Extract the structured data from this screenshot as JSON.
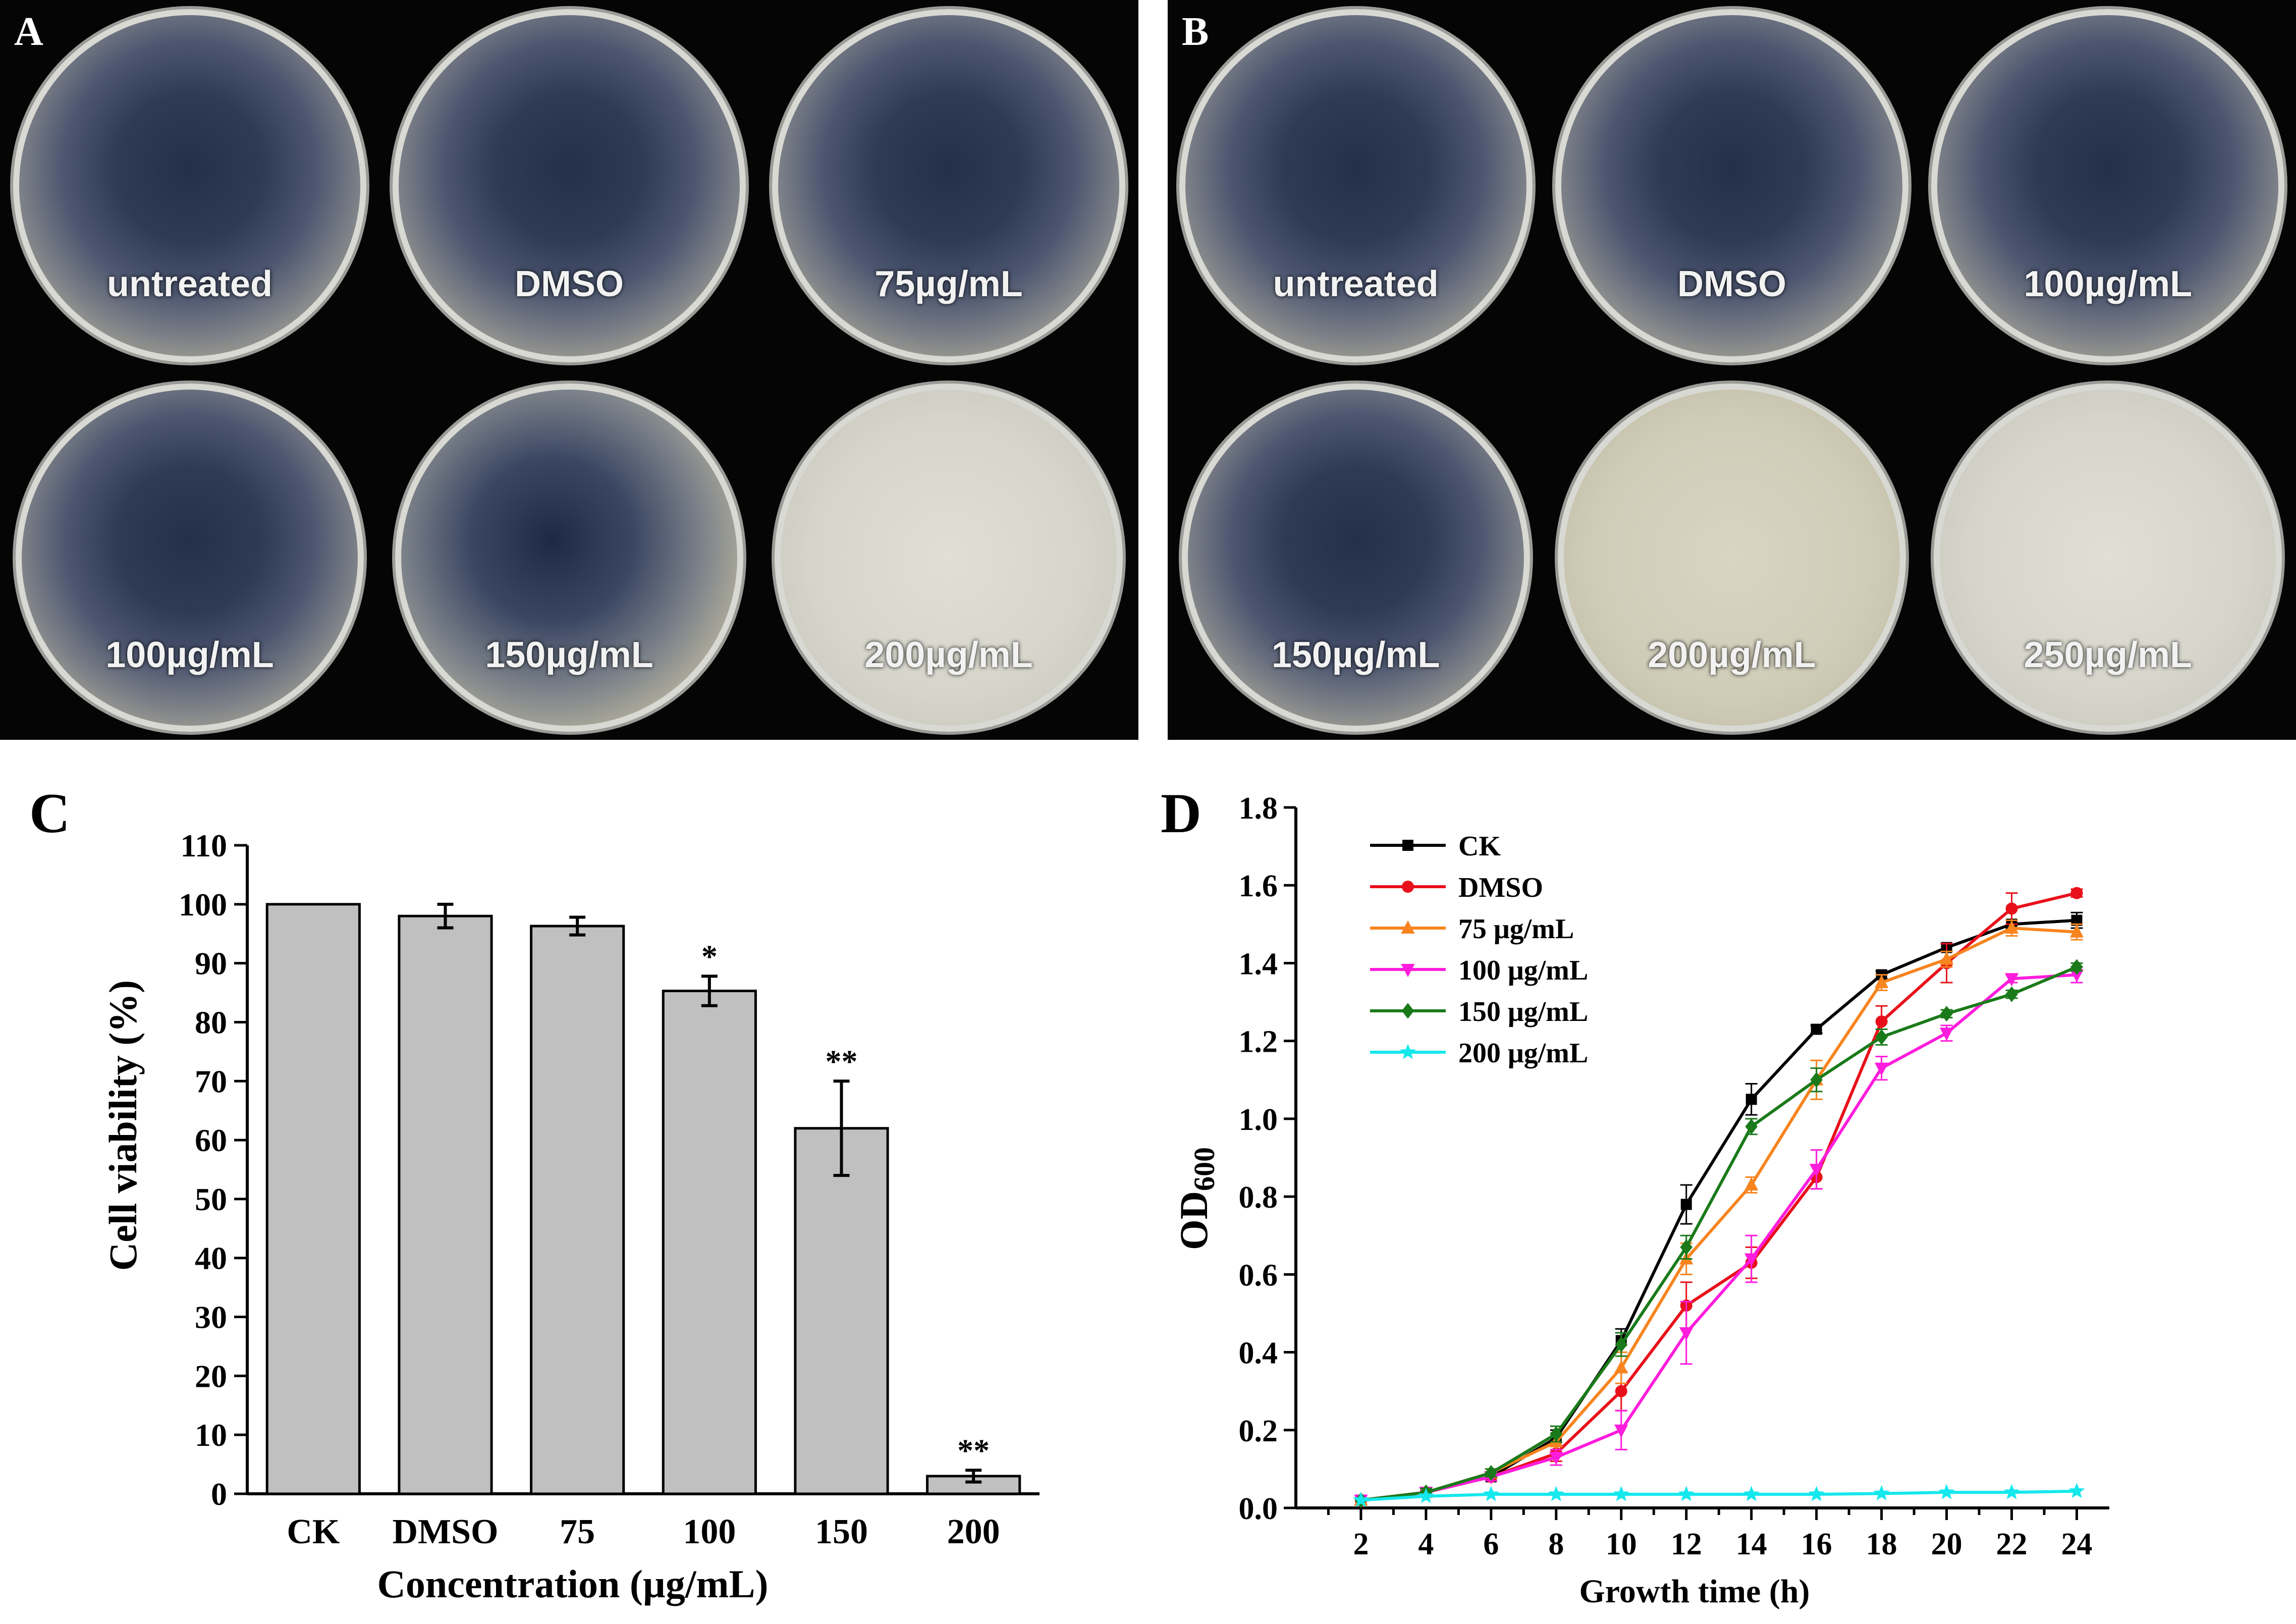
{
  "panelA": {
    "letter": "A",
    "plates": [
      {
        "label": "untreated",
        "style": "dense"
      },
      {
        "label": "DMSO",
        "style": "dense"
      },
      {
        "label": "75µg/mL",
        "style": "dense"
      },
      {
        "label": "100µg/mL",
        "style": "dense"
      },
      {
        "label": "150µg/mL",
        "style": "sparse"
      },
      {
        "label": "200µg/mL",
        "style": "clear"
      }
    ]
  },
  "panelB": {
    "letter": "B",
    "plates": [
      {
        "label": "untreated",
        "style": "dense"
      },
      {
        "label": "DMSO",
        "style": "dense"
      },
      {
        "label": "100µg/mL",
        "style": "dense"
      },
      {
        "label": "150µg/mL",
        "style": "dense"
      },
      {
        "label": "200µg/mL",
        "style": "few"
      },
      {
        "label": "250µg/mL",
        "style": "clear"
      }
    ]
  },
  "panelC": {
    "letter": "C"
  },
  "panelD": {
    "letter": "D"
  },
  "chart_data": [
    {
      "type": "bar",
      "ylabel": "Cell viability (%)",
      "xlabel": "Concentration (µg/mL)",
      "ylim": [
        0,
        110
      ],
      "yticks": [
        0,
        10,
        20,
        30,
        40,
        50,
        60,
        70,
        80,
        90,
        100,
        110
      ],
      "categories": [
        "CK",
        "DMSO",
        "75",
        "100",
        "150",
        "200"
      ],
      "values": [
        100,
        98,
        96.3,
        85.3,
        62,
        3
      ],
      "errors": [
        0,
        2,
        1.5,
        2.5,
        8,
        1
      ],
      "annotations": [
        "",
        "",
        "",
        "*",
        "**",
        "**"
      ],
      "bar_color": "#c0c0c0"
    },
    {
      "type": "line",
      "ylabel": "OD600",
      "xlabel": "Growth time (h)",
      "xlim": [
        0,
        25
      ],
      "ylim": [
        0,
        1.8
      ],
      "xticks": [
        2,
        4,
        6,
        8,
        10,
        12,
        14,
        16,
        18,
        20,
        22,
        24
      ],
      "yticks": [
        "0.0",
        "0.2",
        "0.4",
        "0.6",
        "0.8",
        "1.0",
        "1.2",
        "1.4",
        "1.6",
        "1.8"
      ],
      "x": [
        2,
        4,
        6,
        8,
        10,
        12,
        14,
        16,
        18,
        20,
        22,
        24
      ],
      "legend_position": "top-left",
      "series": [
        {
          "name": "CK",
          "color": "#000000",
          "marker": "square",
          "values": [
            0.02,
            0.04,
            0.08,
            0.18,
            0.43,
            0.78,
            1.05,
            1.23,
            1.37,
            1.44,
            1.5,
            1.51
          ],
          "errors": [
            0,
            0.01,
            0.01,
            0.02,
            0.03,
            0.05,
            0.04,
            0.01,
            0.01,
            0.01,
            0.01,
            0.02
          ]
        },
        {
          "name": "DMSO",
          "color": "#e8101a",
          "marker": "circle",
          "values": [
            0.02,
            0.04,
            0.08,
            0.14,
            0.3,
            0.52,
            0.63,
            0.85,
            1.25,
            1.4,
            1.54,
            1.58
          ],
          "errors": [
            0,
            0.01,
            0.01,
            0.02,
            0.05,
            0.06,
            0.04,
            0.03,
            0.04,
            0.05,
            0.04,
            0.01
          ]
        },
        {
          "name": "75 μg/mL",
          "color": "#f7841e",
          "marker": "triangle-up",
          "values": [
            0.02,
            0.04,
            0.09,
            0.17,
            0.36,
            0.64,
            0.83,
            1.1,
            1.35,
            1.41,
            1.49,
            1.48
          ],
          "errors": [
            0,
            0.01,
            0.01,
            0.02,
            0.04,
            0.04,
            0.02,
            0.05,
            0.02,
            0.02,
            0.02,
            0.02
          ]
        },
        {
          "name": "100 μg/mL",
          "color": "#ff1cdc",
          "marker": "triangle-down",
          "values": [
            0.02,
            0.04,
            0.08,
            0.13,
            0.2,
            0.45,
            0.64,
            0.87,
            1.13,
            1.22,
            1.36,
            1.37
          ],
          "errors": [
            0,
            0.01,
            0.01,
            0.02,
            0.05,
            0.08,
            0.06,
            0.05,
            0.03,
            0.02,
            0.01,
            0.02
          ]
        },
        {
          "name": "150 μg/mL",
          "color": "#1a7a1a",
          "marker": "diamond",
          "values": [
            0.02,
            0.04,
            0.09,
            0.19,
            0.42,
            0.67,
            0.98,
            1.1,
            1.21,
            1.27,
            1.32,
            1.39
          ],
          "errors": [
            0,
            0.01,
            0.01,
            0.02,
            0.03,
            0.03,
            0.02,
            0.03,
            0.02,
            0.01,
            0.01,
            0.01
          ]
        },
        {
          "name": "200 μg/mL",
          "color": "#14e8ec",
          "marker": "star",
          "values": [
            0.02,
            0.03,
            0.035,
            0.035,
            0.035,
            0.035,
            0.035,
            0.035,
            0.037,
            0.04,
            0.04,
            0.043
          ],
          "errors": [
            0,
            0,
            0,
            0,
            0,
            0,
            0,
            0,
            0,
            0,
            0,
            0
          ]
        }
      ]
    }
  ]
}
